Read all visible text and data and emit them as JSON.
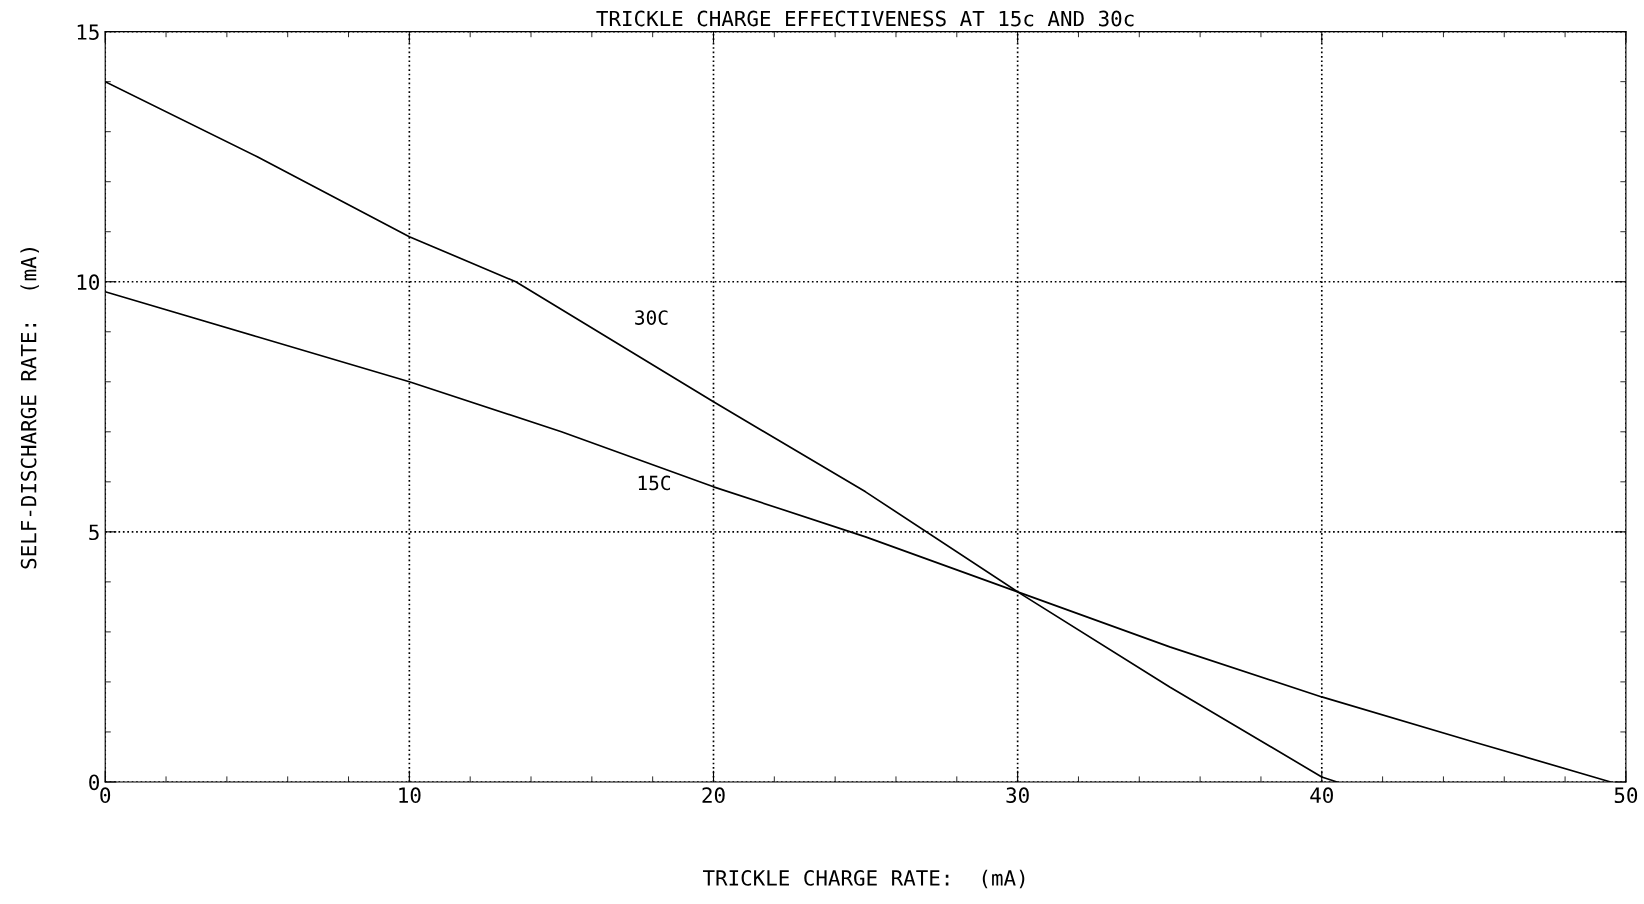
{
  "chart_data": {
    "type": "line",
    "title": "TRICKLE CHARGE EFFECTIVENESS AT 15c AND 30c",
    "xlabel": "TRICKLE CHARGE RATE:  (mA)",
    "ylabel": "SELF-DISCHARGE RATE:  (mA)",
    "xlim": [
      0,
      50
    ],
    "ylim": [
      0,
      15
    ],
    "xticks": [
      0,
      10,
      20,
      30,
      40,
      50
    ],
    "yticks": [
      0,
      5,
      10,
      15
    ],
    "grid": true,
    "legend": false,
    "marker": "none",
    "line_style": "solid",
    "series": [
      {
        "name": "30C",
        "color": "#000000",
        "x": [
          0,
          5,
          10,
          13.5,
          20,
          25,
          30,
          35,
          40,
          40.5
        ],
        "values": [
          14,
          12.5,
          10.9,
          10,
          7.6,
          5.8,
          3.8,
          1.9,
          0.1,
          0
        ]
      },
      {
        "name": "15C",
        "color": "#000000",
        "x": [
          0,
          5,
          10,
          15,
          20,
          25,
          30,
          35,
          40,
          45,
          49.5
        ],
        "values": [
          9.8,
          8.9,
          8,
          7,
          5.9,
          4.9,
          3.8,
          2.7,
          1.7,
          0.8,
          0
        ]
      }
    ]
  }
}
